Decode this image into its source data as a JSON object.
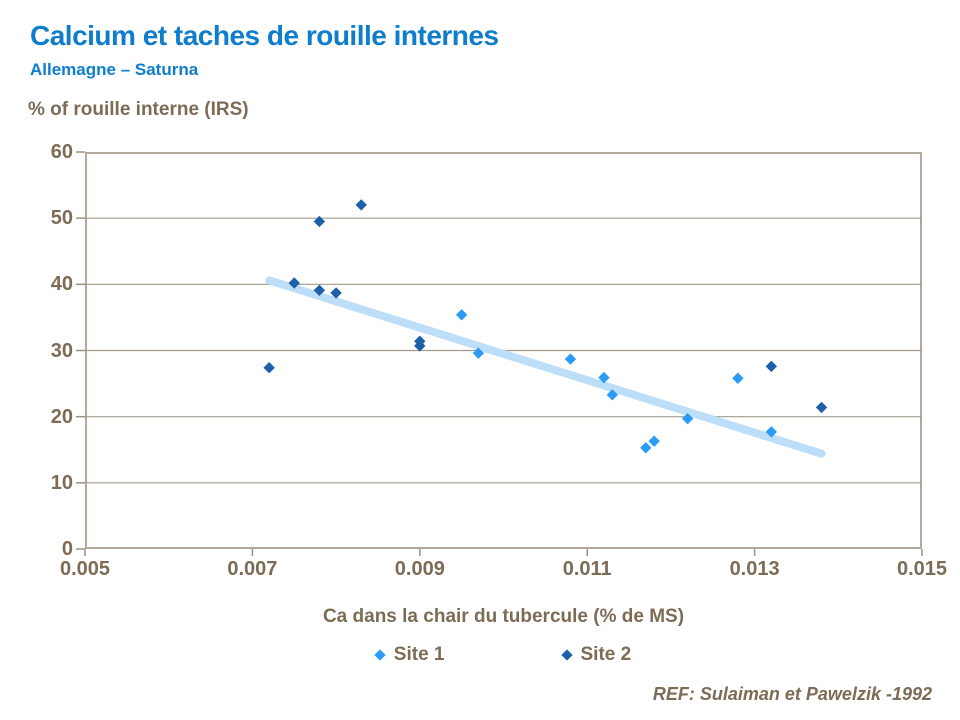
{
  "header": {
    "title": "Calcium et taches de rouille internes",
    "subtitle": "Allemagne – Saturna"
  },
  "footer": {
    "ref": "REF: Sulaiman et Pawelzik -1992"
  },
  "colors": {
    "title_blue": "#0e7dcc",
    "text_brown": "#7d6c55",
    "plot_frame": "#b2a99c",
    "gridline": "#a59b8d",
    "tick": "#9b9184",
    "site1_blue": "#2b9bf3",
    "site2_blue": "#1f5fa8",
    "trendline_blue": "#bcdef9"
  },
  "chart_data": {
    "type": "scatter",
    "title": "Calcium et taches de rouille internes",
    "subtitle": "Allemagne – Saturna",
    "ylabel": "% of rouille interne (IRS)",
    "xlabel": "Ca dans la chair du tubercule (% de MS)",
    "xlim": [
      0.005,
      0.015
    ],
    "ylim": [
      0,
      60
    ],
    "x_ticks": [
      0.005,
      0.007,
      0.009,
      0.011,
      0.013,
      0.015
    ],
    "x_tick_labels": [
      "0.005",
      "0.007",
      "0.009",
      "0.011",
      "0.013",
      "0.015"
    ],
    "y_ticks": [
      0,
      10,
      20,
      30,
      40,
      50,
      60
    ],
    "y_tick_labels": [
      "0",
      "10",
      "20",
      "30",
      "40",
      "50",
      "60"
    ],
    "grid": "horizontal",
    "legend_position": "bottom",
    "series": [
      {
        "name": "Site 1",
        "color": "#2b9bf3",
        "marker": "diamond",
        "points": [
          [
            0.0095,
            35.4
          ],
          [
            0.0097,
            29.6
          ],
          [
            0.0108,
            28.7
          ],
          [
            0.0112,
            25.9
          ],
          [
            0.0113,
            23.3
          ],
          [
            0.0117,
            15.3
          ],
          [
            0.0118,
            16.3
          ],
          [
            0.0122,
            19.7
          ],
          [
            0.0128,
            25.8
          ],
          [
            0.0132,
            17.7
          ]
        ]
      },
      {
        "name": "Site 2",
        "color": "#1f5fa8",
        "marker": "diamond",
        "points": [
          [
            0.0072,
            27.4
          ],
          [
            0.0075,
            40.2
          ],
          [
            0.0078,
            49.5
          ],
          [
            0.0078,
            39.1
          ],
          [
            0.008,
            38.7
          ],
          [
            0.0083,
            52.0
          ],
          [
            0.009,
            31.4
          ],
          [
            0.009,
            30.7
          ],
          [
            0.0132,
            27.6
          ],
          [
            0.0138,
            21.4
          ]
        ]
      }
    ],
    "trendline": {
      "color": "#bcdef9",
      "from": [
        0.0072,
        40.6
      ],
      "to": [
        0.0138,
        14.4
      ]
    }
  }
}
